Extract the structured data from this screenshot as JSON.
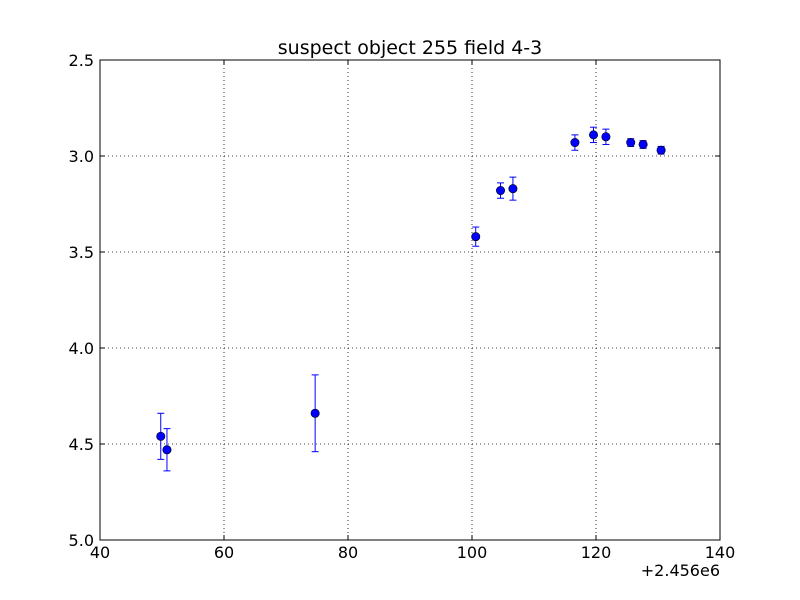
{
  "chart_data": {
    "type": "scatter",
    "title": "suspect object 255 field 4-3",
    "xlabel": "",
    "ylabel": "",
    "x_offset_label": "+2.456e6",
    "xlim": [
      40,
      140
    ],
    "ylim": [
      5.0,
      2.5
    ],
    "y_inverted": true,
    "grid": true,
    "x_ticks": [
      40,
      60,
      80,
      100,
      120,
      140
    ],
    "x_tick_labels": [
      "40",
      "60",
      "80",
      "100",
      "120",
      "140"
    ],
    "y_ticks": [
      2.5,
      3.0,
      3.5,
      4.0,
      4.5,
      5.0
    ],
    "y_tick_labels": [
      "2.5",
      "3.0",
      "3.5",
      "4.0",
      "4.5",
      "5.0"
    ],
    "marker_color": "#0000ff",
    "series": [
      {
        "points": [
          {
            "x": 49.8,
            "y": 4.46,
            "err": 0.12
          },
          {
            "x": 50.8,
            "y": 4.53,
            "err": 0.11
          },
          {
            "x": 74.7,
            "y": 4.34,
            "err": 0.2
          },
          {
            "x": 100.6,
            "y": 3.42,
            "err": 0.05
          },
          {
            "x": 104.6,
            "y": 3.18,
            "err": 0.04
          },
          {
            "x": 106.6,
            "y": 3.17,
            "err": 0.06
          },
          {
            "x": 116.6,
            "y": 2.93,
            "err": 0.04
          },
          {
            "x": 119.6,
            "y": 2.89,
            "err": 0.04
          },
          {
            "x": 121.6,
            "y": 2.9,
            "err": 0.04
          },
          {
            "x": 125.6,
            "y": 2.93,
            "err": 0.02
          },
          {
            "x": 127.6,
            "y": 2.94,
            "err": 0.02
          },
          {
            "x": 130.5,
            "y": 2.97,
            "err": 0.02
          }
        ]
      }
    ]
  }
}
